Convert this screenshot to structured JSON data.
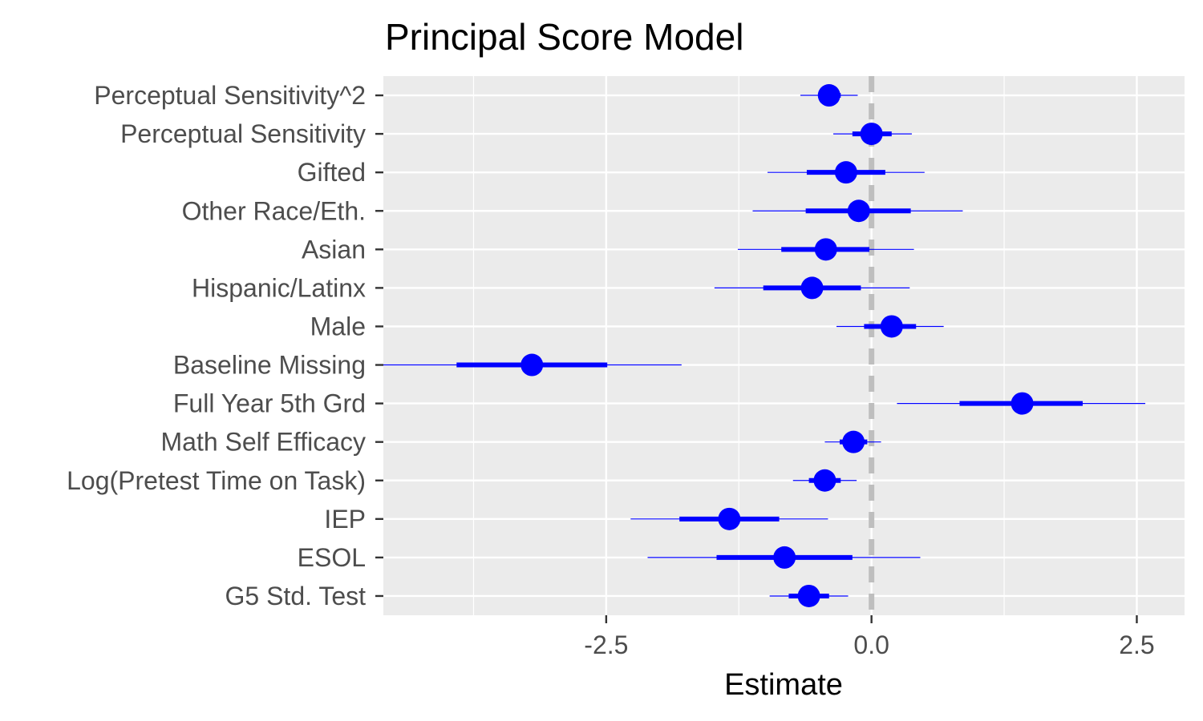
{
  "chart_data": {
    "type": "scatter",
    "subtype": "coefficient-plot",
    "title": "Principal Score Model",
    "xlabel": "Estimate",
    "ylabel": "",
    "xlim": [
      -4.6,
      2.95
    ],
    "x_ticks": [
      -2.5,
      0.0,
      2.5
    ],
    "x_tick_labels": [
      "-2.5",
      "0.0",
      "2.5"
    ],
    "reference_line": {
      "x": 0,
      "style": "dashed",
      "color": "#bebebe"
    },
    "grid": true,
    "panel_background": "#ebebeb",
    "colors": {
      "point": "#0000ff",
      "interval": "#0000ff"
    },
    "categories": [
      "Perceptual Sensitivity^2",
      "Perceptual Sensitivity",
      "Gifted",
      "Other Race/Eth.",
      "Asian",
      "Hispanic/Latinx",
      "Male",
      "Baseline Missing",
      "Full Year 5th Grd",
      "Math Self Efficacy",
      "Log(Pretest Time on Task)",
      "IEP",
      "ESOL",
      "G5 Std. Test"
    ],
    "estimates": [
      -0.4,
      0.0,
      -0.24,
      -0.12,
      -0.43,
      -0.56,
      0.19,
      -3.2,
      1.42,
      -0.17,
      -0.44,
      -1.34,
      -0.82,
      -0.59
    ],
    "inner_interval": [
      [
        -0.5,
        -0.29
      ],
      [
        -0.18,
        0.19
      ],
      [
        -0.61,
        0.13
      ],
      [
        -0.62,
        0.37
      ],
      [
        -0.85,
        -0.02
      ],
      [
        -1.02,
        -0.1
      ],
      [
        -0.07,
        0.42
      ],
      [
        -3.91,
        -2.49
      ],
      [
        0.83,
        1.99
      ],
      [
        -0.3,
        -0.04
      ],
      [
        -0.59,
        -0.29
      ],
      [
        -1.81,
        -0.87
      ],
      [
        -1.46,
        -0.18
      ],
      [
        -0.78,
        -0.4
      ]
    ],
    "outer_interval": [
      [
        -0.67,
        -0.13
      ],
      [
        -0.36,
        0.38
      ],
      [
        -0.98,
        0.5
      ],
      [
        -1.12,
        0.86
      ],
      [
        -1.26,
        0.4
      ],
      [
        -1.48,
        0.36
      ],
      [
        -0.33,
        0.68
      ],
      [
        -4.62,
        -1.79
      ],
      [
        0.24,
        2.58
      ],
      [
        -0.44,
        0.09
      ],
      [
        -0.74,
        -0.14
      ],
      [
        -2.27,
        -0.41
      ],
      [
        -2.11,
        0.46
      ],
      [
        -0.96,
        -0.22
      ]
    ]
  }
}
